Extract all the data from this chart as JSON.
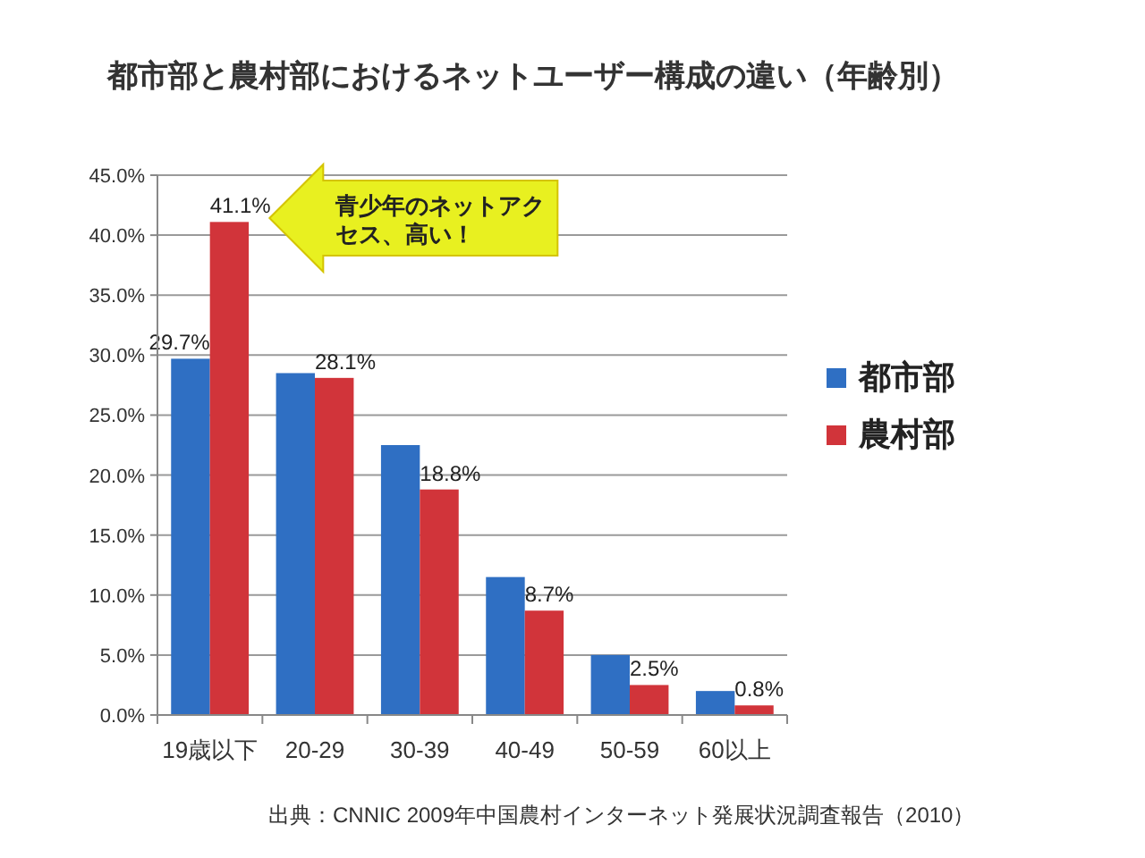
{
  "chart_data": {
    "type": "bar",
    "title": "都市部と農村部におけるネットユーザー構成の違い（年齢別）",
    "categories": [
      "19歳以下",
      "20-29",
      "30-39",
      "40-49",
      "50-59",
      "60以上"
    ],
    "series": [
      {
        "name": "都市部",
        "color": "#2f6fc3",
        "values": [
          29.7,
          28.5,
          22.5,
          11.5,
          5,
          2
        ],
        "value_labels": [
          "29.7%",
          null,
          null,
          null,
          null,
          null
        ]
      },
      {
        "name": "農村部",
        "color": "#d1343a",
        "values": [
          41.1,
          28.1,
          18.8,
          8.7,
          2.5,
          0.8
        ],
        "value_labels": [
          "41.1%",
          "28.1%",
          "18.8%",
          "8.7%",
          "2.5%",
          "0.8%"
        ]
      }
    ],
    "ylim": [
      0,
      45
    ],
    "yticks": [
      {
        "value": 0,
        "label": "0.0%"
      },
      {
        "value": 5,
        "label": "5.0%"
      },
      {
        "value": 10,
        "label": "10.0%"
      },
      {
        "value": 15,
        "label": "15.0%"
      },
      {
        "value": 20,
        "label": "20.0%"
      },
      {
        "value": 25,
        "label": "25.0%"
      },
      {
        "value": 30,
        "label": "30.0%"
      },
      {
        "value": 35,
        "label": "35.0%"
      },
      {
        "value": 40,
        "label": "40.0%"
      },
      {
        "value": 45,
        "label": "45.0%"
      }
    ],
    "grid": "y",
    "legend": "right",
    "annotations": [
      "青少年のネットアクセス、高い！",
      "出典：CNNIC 2009年中国農村インターネット発展状況調査報告（2010）"
    ]
  }
}
